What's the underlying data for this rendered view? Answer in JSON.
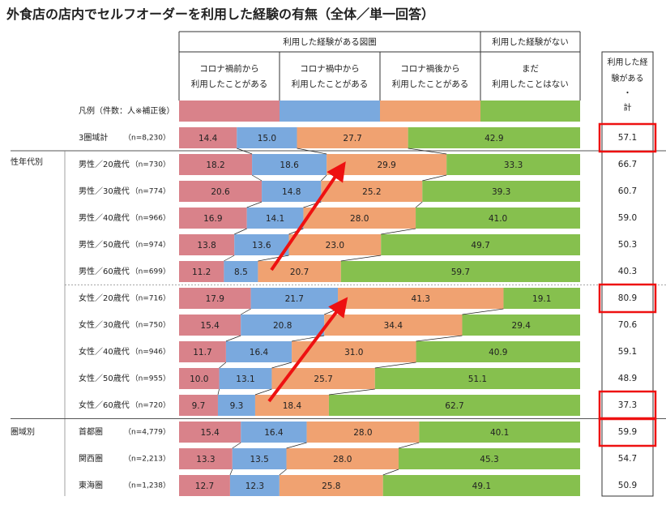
{
  "title": "外食店の店内でセルフオーダーを利用した経験の有無（全体／単一回答）",
  "header": {
    "group_used": "利用した経験がある図圏",
    "group_not_used": "利用した経験がない",
    "total_header_lines": [
      "利用した経",
      "験がある",
      "・",
      "計"
    ]
  },
  "legend_row_label": "凡例（件数：人※補正後）",
  "section_labels": {
    "gender_age": "性年代別",
    "region": "圏域別"
  },
  "colors": {
    "before": "#d9828a",
    "during": "#7aa9de",
    "after": "#f0a271",
    "never": "#86c04e",
    "highlight": "#ee1111",
    "arrow": "#ee1111"
  },
  "chart_data": {
    "type": "stacked-bar-100",
    "series": [
      {
        "name": "コロナ禍前から利用したことがある",
        "name_lines": [
          "コロナ禍前から",
          "利用したことがある"
        ]
      },
      {
        "name": "コロナ禍中から利用したことがある",
        "name_lines": [
          "コロナ禍中から",
          "利用したことがある"
        ]
      },
      {
        "name": "コロナ禍後から利用したことがある",
        "name_lines": [
          "コロナ禍後から",
          "利用したことがある"
        ]
      },
      {
        "name": "まだ利用したことはない",
        "name_lines": [
          "まだ",
          "利用したことはない"
        ]
      }
    ],
    "rows": [
      {
        "label": "3圏域計",
        "n": "（n=8,230）",
        "values": [
          14.4,
          15.0,
          27.7,
          42.9
        ],
        "total": "57.1",
        "highlight": true
      },
      {
        "label": "男性／20歳代",
        "n": "（n=730）",
        "values": [
          18.2,
          18.6,
          29.9,
          33.3
        ],
        "total": "66.7",
        "highlight": false
      },
      {
        "label": "男性／30歳代",
        "n": "（n=774）",
        "values": [
          20.6,
          14.8,
          25.2,
          39.3
        ],
        "total": "60.7",
        "highlight": false
      },
      {
        "label": "男性／40歳代",
        "n": "（n=966）",
        "values": [
          16.9,
          14.1,
          28.0,
          41.0
        ],
        "total": "59.0",
        "highlight": false
      },
      {
        "label": "男性／50歳代",
        "n": "（n=974）",
        "values": [
          13.8,
          13.6,
          23.0,
          49.7
        ],
        "total": "50.3",
        "highlight": false
      },
      {
        "label": "男性／60歳代",
        "n": "（n=699）",
        "values": [
          11.2,
          8.5,
          20.7,
          59.7
        ],
        "total": "40.3",
        "highlight": false
      },
      {
        "label": "女性／20歳代",
        "n": "（n=716）",
        "values": [
          17.9,
          21.7,
          41.3,
          19.1
        ],
        "total": "80.9",
        "highlight": true
      },
      {
        "label": "女性／30歳代",
        "n": "（n=750）",
        "values": [
          15.4,
          20.8,
          34.4,
          29.4
        ],
        "total": "70.6",
        "highlight": false
      },
      {
        "label": "女性／40歳代",
        "n": "（n=946）",
        "values": [
          11.7,
          16.4,
          31.0,
          40.9
        ],
        "total": "59.1",
        "highlight": false
      },
      {
        "label": "女性／50歳代",
        "n": "（n=955）",
        "values": [
          10.0,
          13.1,
          25.7,
          51.1
        ],
        "total": "48.9",
        "highlight": false
      },
      {
        "label": "女性／60歳代",
        "n": "（n=720）",
        "values": [
          9.7,
          9.3,
          18.4,
          62.7
        ],
        "total": "37.3",
        "highlight": true
      },
      {
        "label": "首都圏",
        "n": "（n=4,779）",
        "values": [
          15.4,
          16.4,
          28.0,
          40.1
        ],
        "total": "59.9",
        "highlight": true
      },
      {
        "label": "関西圏",
        "n": "（n=2,213）",
        "values": [
          13.3,
          13.5,
          28.0,
          45.3
        ],
        "total": "54.7",
        "highlight": false
      },
      {
        "label": "東海圏",
        "n": "（n=1,238）",
        "values": [
          12.7,
          12.3,
          25.8,
          49.1
        ],
        "total": "50.9",
        "highlight": false
      }
    ]
  }
}
